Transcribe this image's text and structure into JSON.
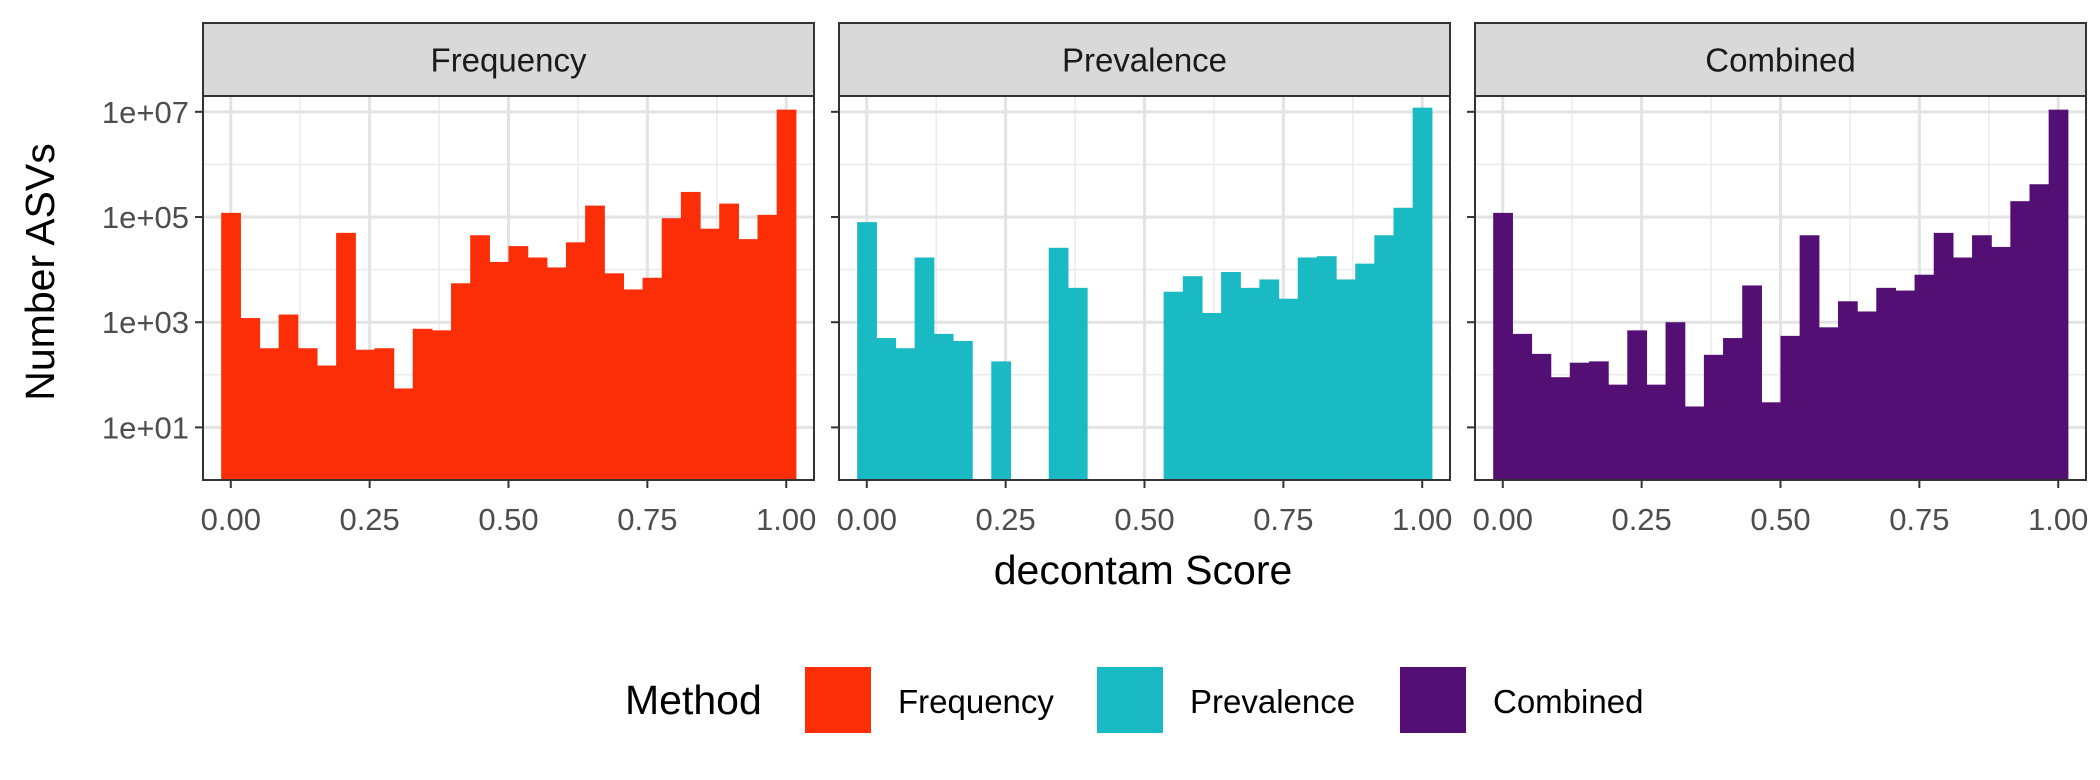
{
  "chart_data": {
    "type": "bar",
    "chart_kind": "faceted histogram",
    "xlabel": "decontam Score",
    "ylabel": "Number ASVs",
    "y_scale": "log10",
    "ylim": [
      1,
      20000000
    ],
    "xlim": [
      -0.05,
      1.05
    ],
    "x_ticks": [
      0,
      0.25,
      0.5,
      0.75,
      1
    ],
    "x_tick_labels": [
      "0.00",
      "0.25",
      "0.50",
      "0.75",
      "1.00"
    ],
    "y_ticks": [
      10,
      1000,
      100000,
      10000000
    ],
    "y_tick_labels": [
      "1e+01",
      "1e+03",
      "1e+05",
      "1e+07"
    ],
    "grid": true,
    "bin_centers": [
      0.0,
      0.0345,
      0.069,
      0.1034,
      0.1379,
      0.1724,
      0.2069,
      0.2414,
      0.2759,
      0.3103,
      0.3448,
      0.3793,
      0.4138,
      0.4483,
      0.4828,
      0.5172,
      0.5517,
      0.5862,
      0.6207,
      0.6552,
      0.6897,
      0.7241,
      0.7586,
      0.7931,
      0.8276,
      0.8621,
      0.8966,
      0.931,
      0.9655,
      1.0
    ],
    "legend": {
      "title": "Method",
      "position": "bottom",
      "entries": [
        {
          "label": "Frequency",
          "color": "#fc2e08"
        },
        {
          "label": "Prevalence",
          "color": "#19bac4"
        },
        {
          "label": "Combined",
          "color": "#530f73"
        }
      ]
    },
    "facets": [
      {
        "name": "Frequency",
        "color": "#fc2e08",
        "counts": [
          120000,
          1200,
          320,
          1400,
          320,
          150,
          50000,
          300,
          320,
          55,
          750,
          700,
          5500,
          45000,
          14000,
          28000,
          17000,
          11000,
          33000,
          165000,
          8500,
          4200,
          7000,
          95000,
          300000,
          60000,
          180000,
          38000,
          110000,
          11000000
        ]
      },
      {
        "name": "Prevalence",
        "color": "#19bac4",
        "counts": [
          80000,
          500,
          320,
          17000,
          600,
          440,
          0,
          180,
          0,
          0,
          26000,
          4500,
          0,
          0,
          0,
          0,
          3800,
          7500,
          1500,
          9000,
          4500,
          6500,
          2800,
          17000,
          18000,
          6500,
          13000,
          45000,
          150000,
          12000000
        ]
      },
      {
        "name": "Combined",
        "color": "#530f73",
        "counts": [
          120000,
          600,
          250,
          90,
          170,
          180,
          65,
          700,
          65,
          1000,
          25,
          240,
          500,
          5000,
          30,
          550,
          45000,
          800,
          2500,
          1600,
          4500,
          4000,
          8000,
          50000,
          17000,
          45000,
          27000,
          200000,
          420000,
          11000000
        ]
      }
    ]
  }
}
